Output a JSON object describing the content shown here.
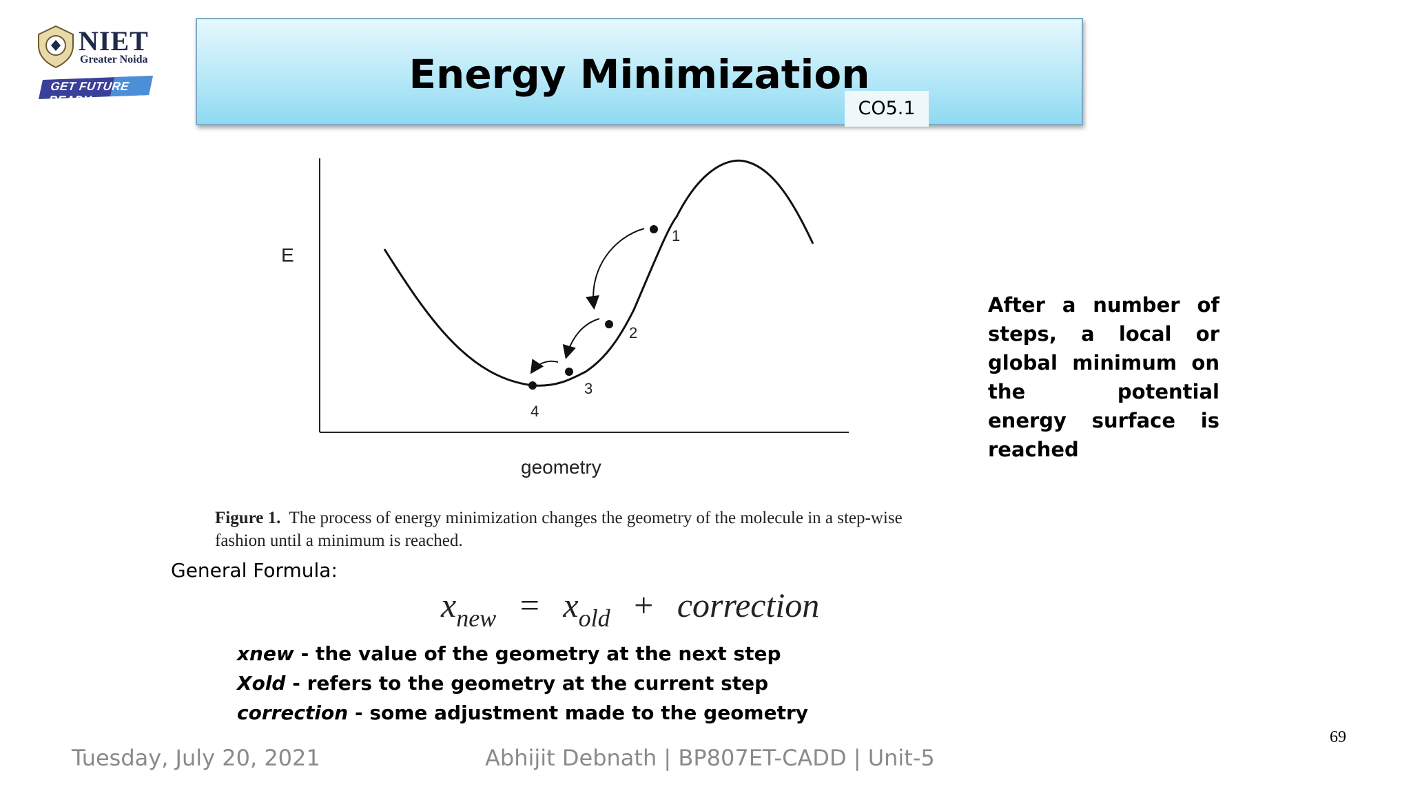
{
  "logo": {
    "name": "NIET",
    "subtitle": "Greater Noida",
    "badge": "GET FUTURE READY"
  },
  "title": "Energy Minimization",
  "course_outcome": "CO5.1",
  "figure": {
    "y_axis_label": "E",
    "x_axis_label": "geometry",
    "point_labels": [
      "1",
      "2",
      "3",
      "4"
    ],
    "caption_bold": "Figure 1.",
    "caption_text": "The process of energy minimization changes the geometry of the molecule in a step-wise fashion until a minimum is reached."
  },
  "formula": {
    "label": "General Formula:",
    "x": "x",
    "new_sub": "new",
    "equals": "=",
    "old_sub": "old",
    "plus": "+",
    "correction": "correction"
  },
  "definitions": [
    {
      "term": "xnew",
      "text": " - the value of the geometry at the next step"
    },
    {
      "term": "Xold",
      "text": " - refers to the geometry at the current step"
    },
    {
      "term": "correction",
      "text": " - some adjustment made to the geometry"
    }
  ],
  "side_note": "After a number of steps, a local or global minimum on the potential energy surface is reached",
  "footer": {
    "date": "Tuesday, July 20, 2021",
    "author": "Abhijit Debnath | BP807ET-CADD | Unit-5"
  },
  "page_number": "69",
  "colors": {
    "title_gradient_top": "#e6f8fd",
    "title_gradient_bottom": "#8fd9f2",
    "footer_text": "#8a8a8a",
    "logo_badge": "#3a3f9a"
  }
}
